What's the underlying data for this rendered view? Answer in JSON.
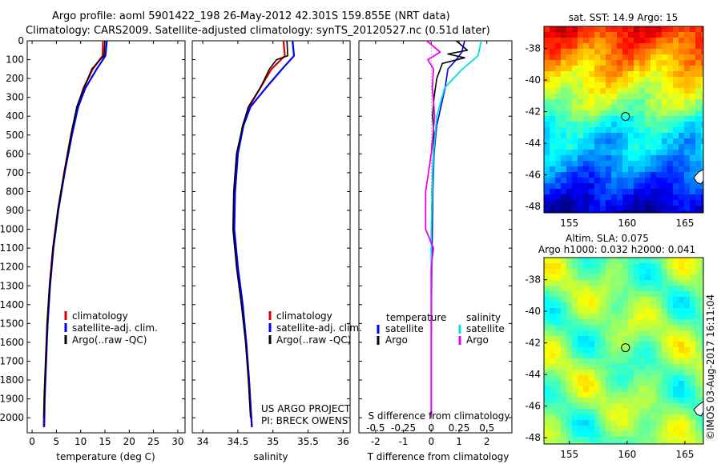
{
  "header": {
    "line1": "Argo profile: aoml 5901422_198 26-May-2012 42.301S 159.855E (NRT data)",
    "line2": "Climatology: CARS2009. Satellite-adjusted climatology: synTS_20120527.nc (0.51d later)"
  },
  "colors": {
    "climatology": "#dd0000",
    "satellite": "#0000ee",
    "argo": "#000000",
    "argo_salinity": "#ee00ee",
    "satellite_salinity": "#00e0e0"
  },
  "chart_data": [
    {
      "type": "line",
      "xlabel": "temperature (deg C)",
      "ylabel": "",
      "xlim": [
        -1,
        31.5
      ],
      "ylim": [
        2080,
        0
      ],
      "xticks": [
        "0",
        "5",
        "10",
        "15",
        "20",
        "25",
        "30"
      ],
      "yticks": [
        "0",
        "100",
        "200",
        "300",
        "400",
        "500",
        "600",
        "700",
        "800",
        "900",
        "1000",
        "1100",
        "1200",
        "1300",
        "1400",
        "1500",
        "1600",
        "1700",
        "1800",
        "1900",
        "2000"
      ],
      "legend": [
        "climatology",
        "satellite-adj. clim.",
        "Argo(..raw -QC)"
      ],
      "series": [
        {
          "name": "climatology",
          "depth": [
            0,
            80,
            150,
            250,
            350,
            500,
            700,
            900,
            1100,
            1300,
            1500,
            1700,
            1900,
            2050
          ],
          "values": [
            14.6,
            14.5,
            12.5,
            10.6,
            9.3,
            8.0,
            6.6,
            5.3,
            4.3,
            3.6,
            3.1,
            2.8,
            2.5,
            2.4
          ]
        },
        {
          "name": "satellite-adj. clim.",
          "depth": [
            0,
            80,
            150,
            250,
            350,
            500,
            700,
            900,
            1100,
            1300,
            1500,
            1700,
            1900,
            2050
          ],
          "values": [
            15.4,
            15.1,
            13.3,
            11.0,
            9.5,
            8.2,
            6.7,
            5.4,
            4.4,
            3.7,
            3.2,
            2.9,
            2.6,
            2.5
          ]
        },
        {
          "name": "Argo(..raw -QC)",
          "depth": [
            0,
            80,
            100,
            150,
            250,
            350,
            500,
            700,
            900,
            1100,
            1300,
            1500,
            1700,
            1900,
            2000
          ],
          "values": [
            15.0,
            14.8,
            14.0,
            12.3,
            10.7,
            9.2,
            8.0,
            6.6,
            5.3,
            4.3,
            3.6,
            3.1,
            2.8,
            2.5,
            2.4
          ]
        }
      ]
    },
    {
      "type": "line",
      "xlabel": "salinity",
      "ylabel": "",
      "xlim": [
        33.85,
        36.1
      ],
      "ylim": [
        2080,
        0
      ],
      "xticks": [
        "34",
        "34.5",
        "35",
        "35.5",
        "36"
      ],
      "legend": [
        "climatology",
        "satellite-adj. clim.",
        "Argo(..raw -QC)"
      ],
      "annotations": [
        "US ARGO PROJECT",
        "PI: BRECK OWENS"
      ],
      "series": [
        {
          "name": "climatology",
          "depth": [
            0,
            80,
            150,
            250,
            350,
            450,
            600,
            800,
            1000,
            1200,
            1400,
            1600,
            1800,
            2050
          ],
          "values": [
            35.15,
            35.17,
            34.98,
            34.82,
            34.66,
            34.57,
            34.5,
            34.46,
            34.44,
            34.49,
            34.56,
            34.62,
            34.66,
            34.7
          ]
        },
        {
          "name": "satellite-adj. clim.",
          "depth": [
            0,
            80,
            150,
            250,
            350,
            450,
            600,
            800,
            1000,
            1200,
            1400,
            1600,
            1800,
            2050
          ],
          "values": [
            35.28,
            35.3,
            35.13,
            34.9,
            34.68,
            34.58,
            34.5,
            34.46,
            34.45,
            34.5,
            34.57,
            34.62,
            34.66,
            34.7
          ]
        },
        {
          "name": "Argo(..raw -QC)",
          "depth": [
            0,
            80,
            100,
            150,
            250,
            350,
            450,
            600,
            800,
            1000,
            1200,
            1400,
            1600,
            1800,
            2000
          ],
          "values": [
            35.2,
            35.21,
            35.05,
            34.95,
            34.82,
            34.65,
            34.57,
            34.48,
            34.44,
            34.43,
            34.48,
            34.55,
            34.61,
            34.65,
            34.68
          ]
        }
      ]
    },
    {
      "type": "line",
      "xlabel": "T difference from climatology",
      "xlabel_top": "S difference from climatology",
      "xlim": [
        -2.6,
        2.9
      ],
      "ylim": [
        2080,
        0
      ],
      "xticks": [
        "-2",
        "-1",
        "0",
        "1",
        "2"
      ],
      "xticks_top": [
        "-0.5",
        "-0.25",
        "0",
        "0.25",
        "0.5"
      ],
      "legend_temperature": [
        "temperature",
        "satellite",
        "Argo"
      ],
      "legend_salinity": [
        "salinity",
        "satellite",
        "Argo"
      ],
      "series": [
        {
          "name": "satellite",
          "depth": [
            0,
            60,
            100,
            150,
            250,
            350,
            450,
            600,
            800,
            1000,
            1200,
            1400,
            1600,
            1800,
            2000
          ],
          "values": [
            1.2,
            1.1,
            0.9,
            0.6,
            0.5,
            0.35,
            0.2,
            0.1,
            0.06,
            0.04,
            0.02,
            0.01,
            0.0,
            0.0,
            0.0
          ]
        },
        {
          "name": "Argo",
          "depth": [
            0,
            50,
            70,
            90,
            120,
            200,
            300,
            400,
            500,
            700,
            900,
            1100,
            1300,
            1500,
            1700,
            1900,
            2000
          ],
          "values": [
            0.9,
            1.3,
            0.6,
            1.2,
            0.4,
            0.2,
            0.1,
            0.05,
            0.1,
            0.05,
            0.02,
            0.0,
            0.0,
            0.0,
            0.0,
            0.0,
            0.0
          ]
        },
        {
          "name": "satellite",
          "depth": [
            0,
            80,
            150,
            250,
            400,
            600,
            800,
            1000,
            1200,
            1400,
            1600,
            1800,
            2000
          ],
          "values": [
            0.45,
            0.42,
            0.28,
            0.12,
            0.05,
            0.02,
            0.01,
            0.0,
            0.0,
            0.0,
            0.0,
            0.0,
            0.0
          ]
        },
        {
          "name": "Argo",
          "depth": [
            0,
            60,
            100,
            150,
            250,
            400,
            600,
            800,
            1000,
            1100,
            1200,
            1400,
            1600,
            1800,
            2000
          ],
          "values": [
            -0.04,
            0.08,
            -0.03,
            0.02,
            0.01,
            0.03,
            0.0,
            -0.05,
            -0.05,
            0.02,
            0.0,
            0.0,
            0.0,
            0.0,
            0.0
          ]
        }
      ]
    },
    {
      "type": "heatmap",
      "title": "sat. SST: 14.9 Argo: 15",
      "xticks": [
        "155",
        "160",
        "165"
      ],
      "yticks": [
        "-38",
        "-40",
        "-42",
        "-44",
        "-46",
        "-48"
      ],
      "xlim": [
        152.8,
        166.6
      ],
      "ylim": [
        -48.4,
        -36.6
      ],
      "point": {
        "lon": 159.855,
        "lat": -42.301
      }
    },
    {
      "type": "heatmap",
      "title": "Altim. SLA: 0.075",
      "subtitle": "Argo h1000: 0.032 h2000: 0.041",
      "xticks": [
        "155",
        "160",
        "165"
      ],
      "yticks": [
        "-38",
        "-40",
        "-42",
        "-44",
        "-46",
        "-48"
      ],
      "xlim": [
        152.8,
        166.6
      ],
      "ylim": [
        -48.4,
        -36.6
      ],
      "point": {
        "lon": 159.855,
        "lat": -42.301
      }
    }
  ],
  "credit": "©IMOS 03-Aug-2017 16:11:04"
}
